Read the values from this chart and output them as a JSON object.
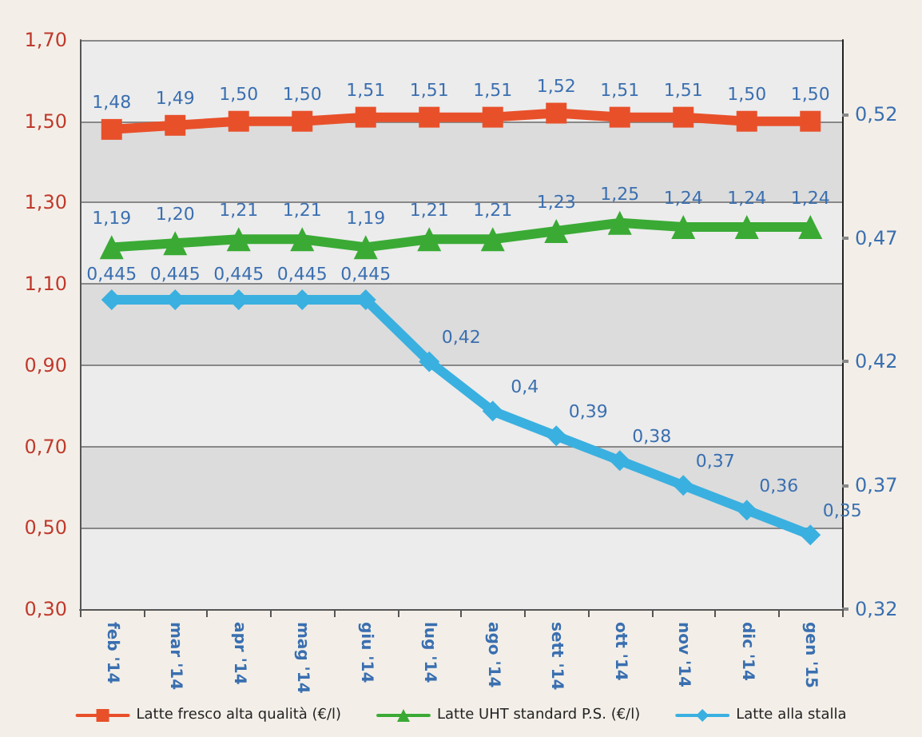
{
  "chart_data": {
    "type": "line",
    "categories": [
      "feb '14",
      "mar '14",
      "apr '14",
      "mag '14",
      "giu '14",
      "lug '14",
      "ago '14",
      "sett '14",
      "ott '14",
      "nov '14",
      "dic '14",
      "gen '15"
    ],
    "series": [
      {
        "name": "Latte fresco alta qualità (€/l)",
        "color": "#e8502a",
        "marker": "square",
        "values": [
          1.48,
          1.49,
          1.5,
          1.5,
          1.51,
          1.51,
          1.51,
          1.52,
          1.51,
          1.51,
          1.5,
          1.5
        ],
        "value_labels": [
          "1,48",
          "1,49",
          "1,50",
          "1,50",
          "1,51",
          "1,51",
          "1,51",
          "1,52",
          "1,51",
          "1,51",
          "1,50",
          "1,50"
        ]
      },
      {
        "name": "Latte UHT standard P.S. (€/l)",
        "color": "#3aaa35",
        "marker": "triangle",
        "values": [
          1.19,
          1.2,
          1.21,
          1.21,
          1.19,
          1.21,
          1.21,
          1.23,
          1.25,
          1.24,
          1.24,
          1.24
        ],
        "value_labels": [
          "1,19",
          "1,20",
          "1,21",
          "1,21",
          "1,19",
          "1,21",
          "1,21",
          "1,23",
          "1,25",
          "1,24",
          "1,24",
          "1,24"
        ]
      },
      {
        "name": "Latte alla stalla",
        "color": "#3ab0e0",
        "marker": "diamond",
        "axis": "y2",
        "values": [
          0.445,
          0.445,
          0.445,
          0.445,
          0.445,
          0.42,
          0.4,
          0.39,
          0.38,
          0.37,
          0.36,
          0.35
        ],
        "value_labels": [
          "0,445",
          "0,445",
          "0,445",
          "0,445",
          "0,445",
          "0,42",
          "0,4",
          "0,39",
          "0,38",
          "0,37",
          "0,36",
          "0,35"
        ]
      }
    ],
    "ylim": [
      0.3,
      1.7
    ],
    "yticks": [
      {
        "value": 0.3,
        "label": "0,30"
      },
      {
        "value": 0.5,
        "label": "0,50"
      },
      {
        "value": 0.7,
        "label": "0,70"
      },
      {
        "value": 0.9,
        "label": "0,90"
      },
      {
        "value": 1.1,
        "label": "1,10"
      },
      {
        "value": 1.3,
        "label": "1,30"
      },
      {
        "value": 1.5,
        "label": "1,50"
      },
      {
        "value": 1.7,
        "label": "1,70"
      }
    ],
    "y2lim": [
      0.32,
      0.55
    ],
    "y2ticks": [
      {
        "value": 0.32,
        "label": "0,32"
      },
      {
        "value": 0.37,
        "label": "0,37"
      },
      {
        "value": 0.42,
        "label": "0,42"
      },
      {
        "value": 0.47,
        "label": "0,47"
      },
      {
        "value": 0.52,
        "label": "0,52"
      }
    ],
    "grid": "y",
    "legend": "bottom"
  }
}
